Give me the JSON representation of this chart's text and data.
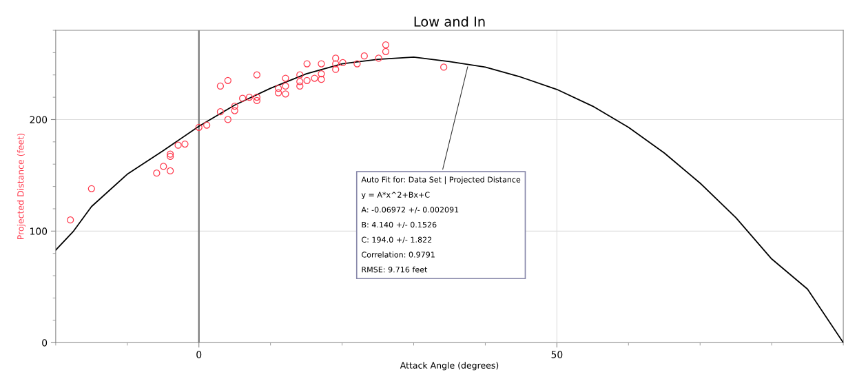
{
  "chart_data": {
    "type": "scatter",
    "title": "Low and In",
    "xlabel": "Attack Angle (degrees)",
    "ylabel": "Projected Distance (feet)",
    "xlim": [
      -20,
      90
    ],
    "ylim": [
      0,
      280
    ],
    "xticks": [
      0,
      50
    ],
    "yticks": [
      0,
      100,
      200
    ],
    "grid": true,
    "marker": "circle",
    "ref_lines": [
      {
        "axis": "x",
        "value": 0,
        "label": null,
        "color": "#777777"
      }
    ],
    "annotations": [
      {
        "text": "Auto Fit for: Data Set | Projected Distance\ny = A*x^2+Bx+C\nA: -0.06972 +/- 0.002091\nB: 4.140 +/- 0.1526\nC: 194.0 +/- 1.822\nCorrelation: 0.9791\nRMSE: 9.716 feet",
        "x": 37.6,
        "y": 249
      }
    ],
    "series": [
      {
        "color": "#ff3b4e",
        "x": [
          -17.95,
          -15.0,
          -5.9,
          -4.95,
          -4.0,
          -4.0,
          -4.0,
          -2.9,
          -1.95,
          0.0,
          1.1,
          3.0,
          4.05,
          3.0,
          4.05,
          5.0,
          5.0,
          6.1,
          7.05,
          8.1,
          8.1,
          8.1,
          11.1,
          11.1,
          12.1,
          12.1,
          12.1,
          14.1,
          14.1,
          14.1,
          15.1,
          15.1,
          16.15,
          17.1,
          17.1,
          17.1,
          19.1,
          19.1,
          19.1,
          20.1,
          22.1,
          23.1,
          25.1,
          26.1,
          26.1,
          34.2
        ],
        "values": [
          110,
          138,
          152,
          158,
          154,
          169,
          167,
          177,
          178,
          193,
          195,
          230,
          235,
          207,
          200,
          212,
          208,
          219,
          220,
          240,
          220,
          217,
          228,
          224,
          237,
          230,
          223,
          240,
          234,
          230,
          250,
          235,
          237,
          250,
          241,
          236,
          255,
          250,
          245,
          251,
          250,
          257,
          255,
          267,
          261,
          247
        ]
      },
      {
        "type": "line",
        "color": "#000000",
        "marker": "none",
        "x": [
          -20,
          -17.5,
          -15,
          -10,
          -5,
          0,
          5,
          10,
          15,
          20,
          25,
          30,
          35,
          40,
          45,
          50,
          55,
          60,
          65,
          70,
          75,
          80,
          85,
          90
        ],
        "values": [
          83,
          100,
          122,
          151,
          172,
          194,
          213,
          228,
          241,
          250,
          254,
          256,
          252,
          247,
          238,
          227,
          212,
          193,
          170,
          143,
          112,
          75,
          48,
          0
        ]
      }
    ]
  }
}
